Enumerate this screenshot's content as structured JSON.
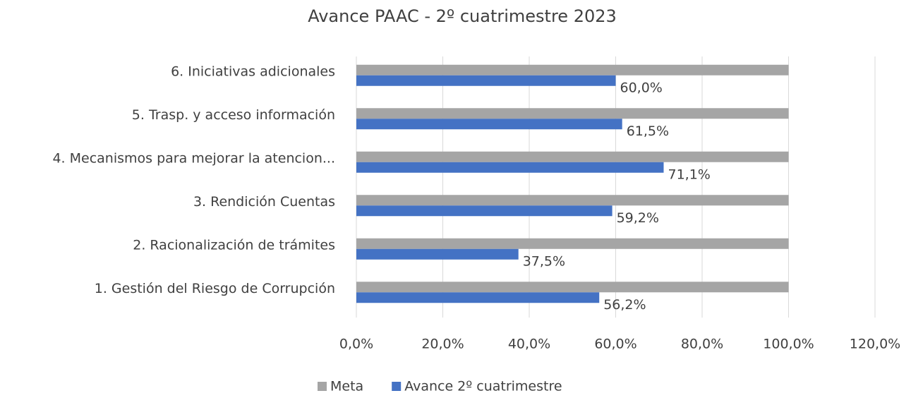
{
  "chart_data": {
    "type": "hbar",
    "title": "Avance PAAC - 2º cuatrimestre 2023",
    "categories": [
      "6. Iniciativas adicionales",
      "5. Trasp. y acceso información",
      "4. Mecanismos para mejorar la atencion...",
      "3. Rendición Cuentas",
      "2. Racionalización de trámites",
      "1. Gestión del Riesgo de Corrupción"
    ],
    "series": [
      {
        "name": "Meta",
        "color": "#a5a5a5",
        "values": [
          100,
          100,
          100,
          100,
          100,
          100
        ]
      },
      {
        "name": "Avance 2º cuatrimestre",
        "color": "#4472c4",
        "values": [
          60.0,
          61.5,
          71.1,
          59.2,
          37.5,
          56.2
        ],
        "value_labels": [
          "60,0%",
          "61,5%",
          "71,1%",
          "59,2%",
          "37,5%",
          "56,2%"
        ]
      }
    ],
    "xlim": [
      0,
      120
    ],
    "xticks": [
      {
        "value": 0,
        "label": "0,0%"
      },
      {
        "value": 20,
        "label": "20,0%"
      },
      {
        "value": 40,
        "label": "40,0%"
      },
      {
        "value": 60,
        "label": "60,0%"
      },
      {
        "value": 80,
        "label": "80,0%"
      },
      {
        "value": 100,
        "label": "100,0%"
      },
      {
        "value": 120,
        "label": "120,0%"
      }
    ],
    "grid": true,
    "legend": "bottom"
  }
}
